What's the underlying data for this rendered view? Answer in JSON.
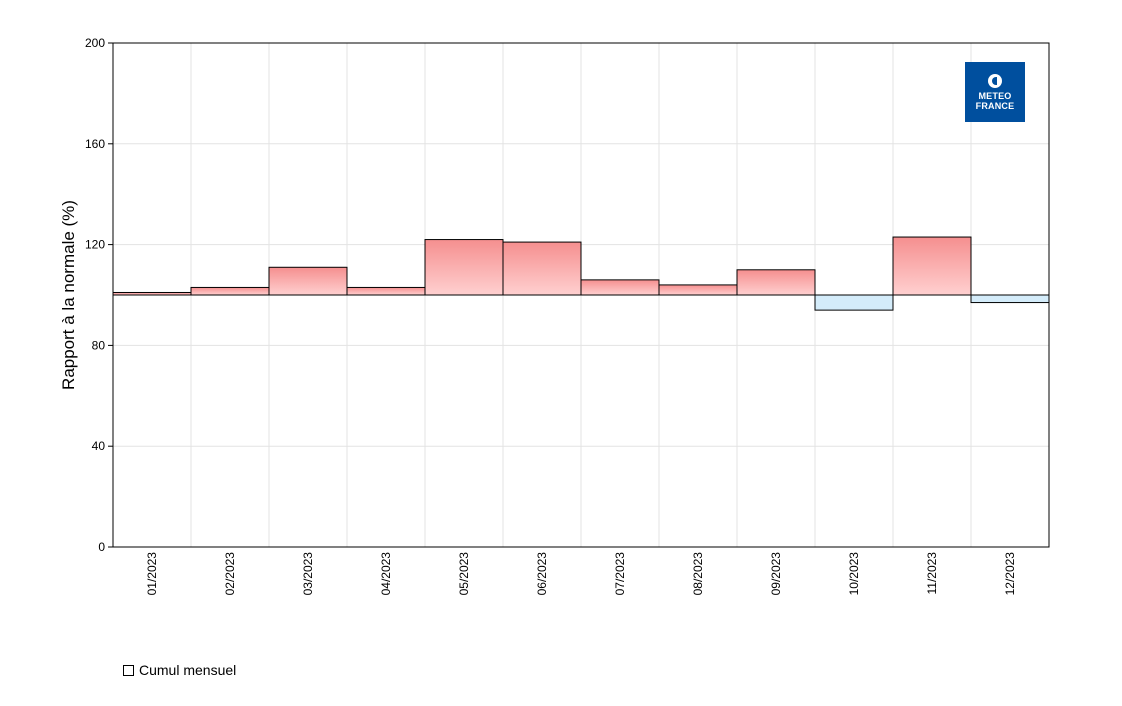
{
  "chart_data": {
    "type": "bar",
    "ylabel": "Rapport à la normale (%)",
    "xlabel": "",
    "categories": [
      "01/2023",
      "02/2023",
      "03/2023",
      "04/2023",
      "05/2023",
      "06/2023",
      "07/2023",
      "08/2023",
      "09/2023",
      "10/2023",
      "11/2023",
      "12/2023"
    ],
    "series": [
      {
        "name": "Cumul mensuel",
        "values": [
          101,
          103,
          111,
          103,
          122,
          121,
          106,
          104,
          110,
          94,
          123,
          97
        ]
      }
    ],
    "baseline": 100,
    "ylim": [
      0,
      200
    ],
    "yticks": [
      0,
      40,
      80,
      120,
      160,
      200
    ],
    "grid": true,
    "legend_position": "bottom-left",
    "colors": {
      "above_top": "#f58f8f",
      "above_bottom": "#ffd0d0",
      "below": "#d4ecfa",
      "outline": "#000000",
      "grid": "#e3e3e3",
      "logo_bg": "#004f9e"
    }
  },
  "legend": {
    "label": "Cumul mensuel"
  },
  "logo": {
    "line1": "METEO",
    "line2": "FRANCE",
    "icon": "meteo-france-emblem-icon"
  }
}
